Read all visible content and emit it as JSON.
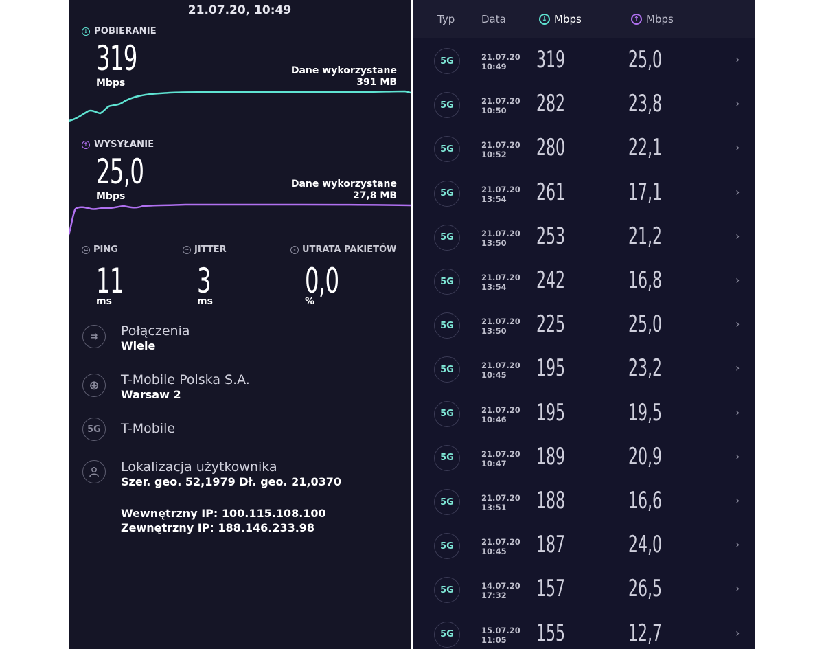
{
  "left": {
    "timestamp": "21.07.20, 10:49",
    "download": {
      "label": "POBIERANIE",
      "value": "319",
      "unit": "Mbps",
      "data_used_label": "Dane wykorzystane",
      "data_used": "391 MB",
      "color": "#5fe3d2"
    },
    "upload": {
      "label": "WYSYŁANIE",
      "value": "25,0",
      "unit": "Mbps",
      "data_used_label": "Dane wykorzystane",
      "data_used": "27,8 MB",
      "color": "#b070f0"
    },
    "ping": {
      "label": "PING",
      "value": "11",
      "unit": "ms"
    },
    "jitter": {
      "label": "JITTER",
      "value": "3",
      "unit": "ms"
    },
    "packet_loss": {
      "label": "UTRATA PAKIETÓW",
      "value": "0,0",
      "unit": "%"
    },
    "connections": {
      "title": "Połączenia",
      "value": "Wiele"
    },
    "provider": {
      "title": "T-Mobile Polska S.A.",
      "value": "Warsaw 2"
    },
    "network": {
      "badge": "5G",
      "title": "T-Mobile"
    },
    "location": {
      "title": "Lokalizacja użytkownika",
      "value": "Szer. geo. 52,1979 Dł. geo. 21,0370"
    },
    "internal_ip": "Wewnętrzny IP: 100.115.108.100",
    "external_ip": "Zewnętrzny IP: 188.146.233.98"
  },
  "right": {
    "header": {
      "type": "Typ",
      "date": "Data",
      "down": "Mbps",
      "up": "Mbps"
    },
    "rows": [
      {
        "badge": "5G",
        "date": "21.07.20",
        "time": "10:49",
        "down": "319",
        "up": "25,0"
      },
      {
        "badge": "5G",
        "date": "21.07.20",
        "time": "10:50",
        "down": "282",
        "up": "23,8"
      },
      {
        "badge": "5G",
        "date": "21.07.20",
        "time": "10:52",
        "down": "280",
        "up": "22,1"
      },
      {
        "badge": "5G",
        "date": "21.07.20",
        "time": "13:54",
        "down": "261",
        "up": "17,1"
      },
      {
        "badge": "5G",
        "date": "21.07.20",
        "time": "13:50",
        "down": "253",
        "up": "21,2"
      },
      {
        "badge": "5G",
        "date": "21.07.20",
        "time": "13:54",
        "down": "242",
        "up": "16,8"
      },
      {
        "badge": "5G",
        "date": "21.07.20",
        "time": "13:50",
        "down": "225",
        "up": "25,0"
      },
      {
        "badge": "5G",
        "date": "21.07.20",
        "time": "10:45",
        "down": "195",
        "up": "23,2"
      },
      {
        "badge": "5G",
        "date": "21.07.20",
        "time": "10:46",
        "down": "195",
        "up": "19,5"
      },
      {
        "badge": "5G",
        "date": "21.07.20",
        "time": "10:47",
        "down": "189",
        "up": "20,9"
      },
      {
        "badge": "5G",
        "date": "21.07.20",
        "time": "13:51",
        "down": "188",
        "up": "16,6"
      },
      {
        "badge": "5G",
        "date": "21.07.20",
        "time": "10:45",
        "down": "187",
        "up": "24,0"
      },
      {
        "badge": "5G",
        "date": "14.07.20",
        "time": "17:32",
        "down": "157",
        "up": "26,5"
      },
      {
        "badge": "5G",
        "date": "15.07.20",
        "time": "11:05",
        "down": "155",
        "up": "12,7"
      }
    ]
  }
}
